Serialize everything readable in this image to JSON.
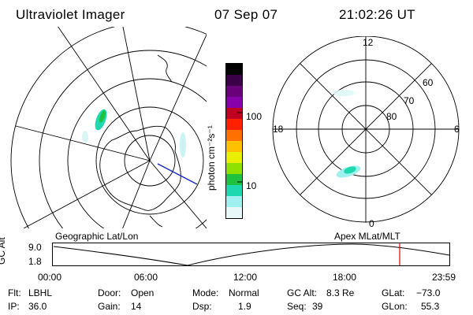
{
  "header": {
    "instrument": "Ultraviolet Imager",
    "date": "07 Sep 07",
    "time": "21:02:26 UT"
  },
  "colorbar": {
    "unit_label": "photon cm⁻²s⁻¹",
    "ticks": [
      "100",
      "10"
    ],
    "colors": [
      "#000000",
      "#3a0048",
      "#6a007a",
      "#8800aa",
      "#c00020",
      "#ff2000",
      "#ff7000",
      "#ffc000",
      "#e8f000",
      "#90e000",
      "#20c040",
      "#20d8b0",
      "#a0f0f0",
      "#e8f8f8"
    ]
  },
  "left_map": {
    "label": "Geographic Lat/Lon"
  },
  "right_map": {
    "label": "Apex  MLat/MLT",
    "mlt_labels": {
      "top": "12",
      "left": "18",
      "right": "6",
      "bottom": "0"
    },
    "lat_labels": [
      "60",
      "70",
      "80"
    ]
  },
  "orbit_plot": {
    "y_axis_label": "GC Alt",
    "y_ticks": [
      "9.0",
      "1.8"
    ],
    "x_ticks": [
      "00:00",
      "06:00",
      "12:00",
      "18:00",
      "23:59"
    ],
    "marker_color": "#e00000",
    "marker_time": "21:02"
  },
  "info": {
    "filter_label": "Flt:",
    "filter_value": "LBHL",
    "ip_label": "IP:",
    "ip_value": "36.0",
    "door_label": "Door:",
    "door_value": "Open",
    "gain_label": "Gain:",
    "gain_value": "14",
    "mode_label": "Mode:",
    "mode_value": "Normal",
    "dsp_label": "Dsp:",
    "dsp_value": "1.9",
    "gcalt_label": "GC Alt:",
    "gcalt_value": "8.3 Re",
    "seq_label": "Seq:",
    "seq_value": "39",
    "glat_label": "GLat:",
    "glat_value": "−73.0",
    "glon_label": "GLon:",
    "glon_value": "55.3"
  }
}
